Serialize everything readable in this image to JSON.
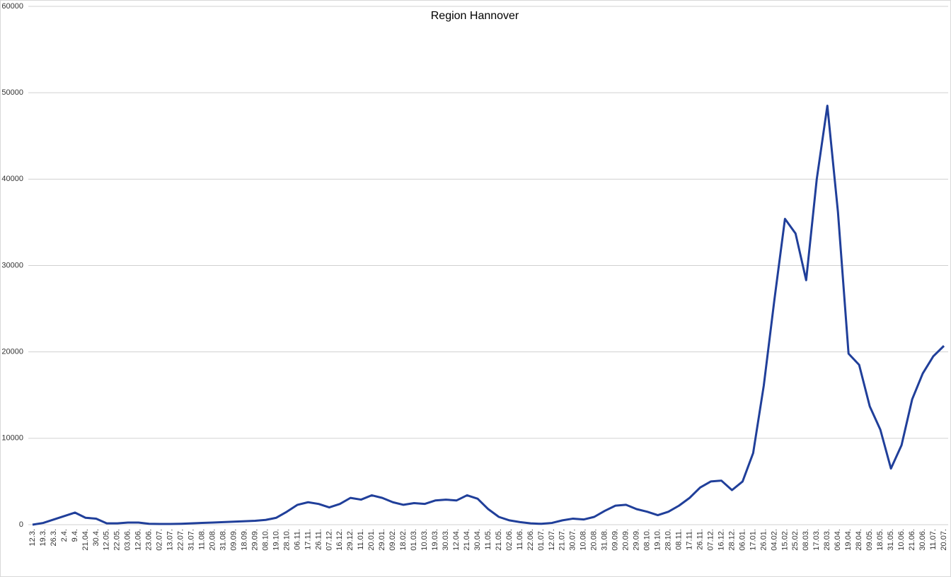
{
  "chart_data": {
    "type": "line",
    "title": "Region Hannover",
    "categories": [
      "12.3.",
      "19.3.",
      "26.3.",
      "2.4.",
      "9.4.",
      "21.04.",
      "30.4.",
      "12.05.",
      "22.05.",
      "03.06.",
      "12.06.",
      "23.06.",
      "02.07.",
      "13.07.",
      "22.07.",
      "31.07.",
      "11.08.",
      "20.08.",
      "31.08.",
      "09.09.",
      "18.09.",
      "29.09.",
      "08.10.",
      "19.10.",
      "28.10.",
      "06.11.",
      "17.11.",
      "26.11.",
      "07.12.",
      "16.12.",
      "29.12.",
      "11.01.",
      "20.01.",
      "29.01.",
      "09.02.",
      "18.02.",
      "01.03.",
      "10.03.",
      "19.03.",
      "30.03.",
      "12.04.",
      "21.04.",
      "30.04.",
      "11.05.",
      "21.05.",
      "02.06.",
      "11.06.",
      "22.06.",
      "01.07.",
      "12.07.",
      "21.07.",
      "30.07.",
      "10.08.",
      "20.08.",
      "31.08.",
      "09.09.",
      "20.09.",
      "29.09.",
      "08.10.",
      "19.10.",
      "28.10.",
      "08.11.",
      "17.11.",
      "26.11.",
      "07.12.",
      "16.12.",
      "28.12.",
      "06.01.",
      "17.01.",
      "26.01.",
      "04.02.",
      "15.02.",
      "25.02.",
      "08.03.",
      "17.03.",
      "28.03.",
      "06.04.",
      "19.04.",
      "28.04.",
      "09.05.",
      "18.05.",
      "31.05.",
      "10.06.",
      "21.06.",
      "30.06.",
      "11.07.",
      "20.07."
    ],
    "values": [
      0,
      200,
      600,
      1000,
      1400,
      800,
      700,
      150,
      150,
      250,
      250,
      100,
      80,
      80,
      100,
      150,
      200,
      250,
      300,
      350,
      400,
      450,
      550,
      800,
      1500,
      2300,
      2600,
      2400,
      2000,
      2400,
      3100,
      2900,
      3400,
      3100,
      2600,
      2300,
      2500,
      2400,
      2800,
      2900,
      2800,
      3400,
      3000,
      1800,
      900,
      500,
      300,
      150,
      100,
      200,
      500,
      700,
      600,
      900,
      1600,
      2200,
      2300,
      1800,
      1500,
      1100,
      1500,
      2200,
      3100,
      4300,
      5000,
      5100,
      4000,
      5000,
      8300,
      16100,
      26000,
      35400,
      33700,
      28300,
      40000,
      48500,
      36200,
      19800,
      18500,
      13700,
      11000,
      6500,
      9200,
      14500,
      17500,
      19500,
      20700
    ],
    "color": "#203f9a",
    "ylim": [
      0,
      60000
    ],
    "yticks": [
      0,
      10000,
      20000,
      30000,
      40000,
      50000,
      60000
    ],
    "grid": true
  }
}
